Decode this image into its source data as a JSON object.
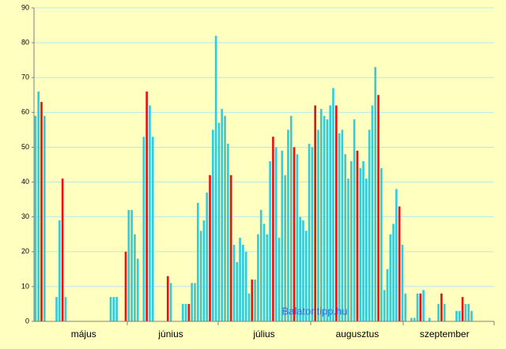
{
  "chart_data": {
    "type": "bar",
    "watermark": "Balatontipp.hu",
    "ylim": [
      0,
      90
    ],
    "yticks": [
      0,
      10,
      20,
      30,
      40,
      50,
      60,
      70,
      80,
      90
    ],
    "grid": true,
    "categories": [
      null,
      null,
      null,
      null,
      null,
      null,
      null,
      null,
      null,
      null,
      null,
      null,
      null,
      null,
      null,
      null,
      "május",
      null,
      null,
      null,
      null,
      null,
      null,
      null,
      null,
      null,
      null,
      null,
      null,
      null,
      null,
      null,
      null,
      null,
      null,
      null,
      null,
      null,
      null,
      null,
      null,
      null,
      null,
      null,
      null,
      "június",
      null,
      null,
      null,
      null,
      null,
      null,
      null,
      null,
      null,
      null,
      null,
      null,
      null,
      null,
      null,
      null,
      null,
      null,
      null,
      null,
      null,
      null,
      null,
      null,
      null,
      null,
      null,
      null,
      null,
      null,
      "július",
      null,
      null,
      null,
      null,
      null,
      null,
      null,
      null,
      null,
      null,
      null,
      null,
      null,
      null,
      null,
      null,
      null,
      null,
      null,
      null,
      null,
      null,
      null,
      null,
      null,
      null,
      null,
      null,
      null,
      null,
      "augusztus",
      null,
      null,
      null,
      null,
      null,
      null,
      null,
      null,
      null,
      null,
      null,
      null,
      null,
      null,
      null,
      null,
      null,
      null,
      null,
      null,
      null,
      null,
      null,
      null,
      null,
      null,
      null,
      null,
      "szeptember",
      null,
      null,
      null,
      null,
      null,
      null,
      null,
      null,
      null,
      null,
      null,
      null,
      null,
      null,
      null,
      null
    ],
    "values": [
      59,
      66,
      63,
      59,
      0,
      0,
      0,
      7,
      29,
      41,
      7,
      0,
      0,
      0,
      0,
      0,
      0,
      0,
      0,
      0,
      0,
      0,
      0,
      0,
      0,
      7,
      7,
      7,
      0,
      0,
      20,
      32,
      32,
      25,
      18,
      0,
      53,
      66,
      62,
      53,
      0,
      0,
      0,
      0,
      13,
      11,
      0,
      0,
      0,
      5,
      5,
      5,
      11,
      11,
      34,
      26,
      29,
      37,
      42,
      55,
      82,
      57,
      61,
      59,
      51,
      42,
      22,
      17,
      24,
      22,
      20,
      8,
      12,
      12,
      25,
      32,
      28,
      25,
      46,
      53,
      50,
      24,
      49,
      42,
      55,
      59,
      50,
      48,
      30,
      29,
      26,
      51,
      50,
      62,
      55,
      61,
      59,
      58,
      62,
      67,
      62,
      54,
      55,
      48,
      41,
      46,
      58,
      49,
      44,
      46,
      41,
      55,
      62,
      73,
      65,
      44,
      9,
      15,
      25,
      28,
      38,
      33,
      22,
      8,
      0,
      1,
      1,
      8,
      8,
      9,
      0,
      1,
      0,
      0,
      5,
      8,
      5,
      0,
      0,
      0,
      3,
      3,
      7,
      5,
      5,
      3,
      0,
      0,
      0,
      0,
      0,
      0,
      0
    ],
    "colors": [
      "#33ccdd",
      "#33ccdd",
      "#ee1111",
      "#33ccdd",
      "#33ccdd",
      "#33ccdd",
      "#33ccdd",
      "#33ccdd",
      "#33ccdd",
      "#ee1111",
      "#33ccdd",
      "#33ccdd",
      "#33ccdd",
      "#33ccdd",
      "#33ccdd",
      "#33ccdd",
      "#ee1111",
      "#33ccdd",
      "#33ccdd",
      "#33ccdd",
      "#33ccdd",
      "#33ccdd",
      "#33ccdd",
      "#ee1111",
      "#33ccdd",
      "#33ccdd",
      "#33ccdd",
      "#33ccdd",
      "#33ccdd",
      "#33ccdd",
      "#ee1111",
      "#33ccdd",
      "#33ccdd",
      "#33ccdd",
      "#33ccdd",
      "#33ccdd",
      "#33ccdd",
      "#ee1111",
      "#33ccdd",
      "#33ccdd",
      "#33ccdd",
      "#33ccdd",
      "#33ccdd",
      "#33ccdd",
      "#ee1111",
      "#33ccdd",
      "#33ccdd",
      "#33ccdd",
      "#33ccdd",
      "#33ccdd",
      "#33ccdd",
      "#ee1111",
      "#33ccdd",
      "#33ccdd",
      "#33ccdd",
      "#33ccdd",
      "#33ccdd",
      "#33ccdd",
      "#ee1111",
      "#33ccdd",
      "#33ccdd",
      "#33ccdd",
      "#33ccdd",
      "#33ccdd",
      "#33ccdd",
      "#ee1111",
      "#33ccdd",
      "#33ccdd",
      "#33ccdd",
      "#33ccdd",
      "#33ccdd",
      "#33ccdd",
      "#ee1111",
      "#33ccdd",
      "#33ccdd",
      "#33ccdd",
      "#33ccdd",
      "#33ccdd",
      "#33ccdd",
      "#ee1111",
      "#33ccdd",
      "#33ccdd",
      "#33ccdd",
      "#33ccdd",
      "#33ccdd",
      "#33ccdd",
      "#ee1111",
      "#33ccdd",
      "#33ccdd",
      "#33ccdd",
      "#33ccdd",
      "#33ccdd",
      "#33ccdd",
      "#ee1111",
      "#33ccdd",
      "#33ccdd",
      "#33ccdd",
      "#33ccdd",
      "#33ccdd",
      "#33ccdd",
      "#ee1111",
      "#33ccdd",
      "#33ccdd",
      "#33ccdd",
      "#33ccdd",
      "#33ccdd",
      "#33ccdd",
      "#ee1111",
      "#33ccdd",
      "#33ccdd",
      "#33ccdd",
      "#33ccdd",
      "#33ccdd",
      "#33ccdd",
      "#ee1111",
      "#33ccdd",
      "#33ccdd",
      "#33ccdd",
      "#33ccdd",
      "#33ccdd",
      "#33ccdd",
      "#ee1111",
      "#33ccdd",
      "#33ccdd",
      "#33ccdd",
      "#33ccdd",
      "#33ccdd",
      "#33ccdd",
      "#ee1111",
      "#33ccdd",
      "#33ccdd",
      "#33ccdd",
      "#33ccdd",
      "#33ccdd",
      "#33ccdd",
      "#ee1111",
      "#33ccdd",
      "#33ccdd",
      "#33ccdd",
      "#33ccdd",
      "#33ccdd",
      "#33ccdd",
      "#ee1111",
      "#33ccdd",
      "#33ccdd",
      "#33ccdd",
      "#33ccdd",
      "#33ccdd",
      "#33ccdd",
      "#ee1111",
      "#33ccdd",
      "#33ccdd",
      "#33ccdd"
    ]
  }
}
